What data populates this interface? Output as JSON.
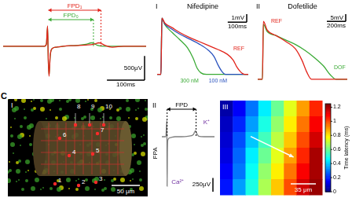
{
  "panel_letter": "C",
  "chart_data": [
    {
      "type": "line",
      "tick_labels": false,
      "grid": false,
      "xlim": [
        0,
        380
      ],
      "ylim": [
        -700,
        500
      ],
      "series": [
        {
          "color": "#e2231a",
          "x": [
            0,
            40,
            80,
            110,
            115,
            118,
            120,
            122,
            125,
            130,
            140,
            160,
            180,
            200,
            220,
            240,
            255,
            260,
            270,
            290,
            320,
            380
          ],
          "values": [
            0,
            0,
            0,
            0,
            50,
            420,
            -300,
            -620,
            -200,
            -50,
            -20,
            0,
            10,
            15,
            25,
            40,
            70,
            60,
            20,
            -20,
            0,
            0
          ]
        },
        {
          "color": "#3aaa35",
          "x": [
            0,
            40,
            80,
            110,
            115,
            118,
            120,
            122,
            125,
            130,
            140,
            160,
            180,
            200,
            220,
            235,
            240,
            250,
            270,
            300,
            340,
            380
          ],
          "values": [
            0,
            0,
            0,
            0,
            50,
            400,
            -300,
            -600,
            -200,
            -50,
            -20,
            0,
            10,
            20,
            40,
            70,
            60,
            20,
            0,
            0,
            0,
            0
          ]
        }
      ],
      "intervals": [
        {
          "text": "FPD₁",
          "color": "#e2231a",
          "start": 120,
          "end": 260
        },
        {
          "text": "FPD₀",
          "color": "#3aaa35",
          "start": 120,
          "end": 240
        }
      ],
      "scale_bars": [
        {
          "axis": "y",
          "value": 500,
          "label": "500μV"
        },
        {
          "axis": "x",
          "value": 100,
          "label": "100ms"
        }
      ]
    },
    {
      "type": "line",
      "numeral": "I",
      "title": "Nifedipine",
      "tick_labels": false,
      "grid": false,
      "xlim": [
        -20,
        460
      ],
      "ylim": [
        -1.5,
        7.5
      ],
      "series": [
        {
          "name": "REF",
          "color": "#e2231a",
          "x": [
            -20,
            0,
            5,
            20,
            60,
            100,
            150,
            200,
            250,
            300,
            350,
            380,
            400,
            420,
            440,
            460
          ],
          "values": [
            0,
            0,
            7,
            6.4,
            5.8,
            5.2,
            4.6,
            4.1,
            3.6,
            3.1,
            2.5,
            1.8,
            0.9,
            0.3,
            0,
            0
          ]
        },
        {
          "name": "100 nM",
          "color": "#2a52be",
          "x": [
            -20,
            0,
            5,
            20,
            60,
            100,
            150,
            200,
            250,
            280,
            300,
            320,
            340,
            460
          ],
          "values": [
            0,
            0,
            7,
            6.3,
            5.6,
            5,
            4.4,
            3.8,
            3,
            2.2,
            1.2,
            0.4,
            0,
            0
          ]
        },
        {
          "name": "300 nM",
          "color": "#3aaa35",
          "x": [
            -20,
            0,
            5,
            20,
            60,
            100,
            140,
            170,
            190,
            210,
            240,
            300,
            460
          ],
          "values": [
            0,
            0,
            7,
            6.2,
            5.2,
            4.3,
            3.3,
            2,
            0.8,
            0.2,
            0,
            0,
            0
          ]
        }
      ],
      "scale_bars": [
        {
          "axis": "y",
          "value": 1,
          "label": "1mV"
        },
        {
          "axis": "x",
          "value": 100,
          "label": "100ms"
        }
      ]
    },
    {
      "type": "line",
      "numeral": "II",
      "title": "Dofetilide",
      "tick_labels": false,
      "grid": false,
      "xlim": [
        -50,
        900
      ],
      "ylim": [
        -5,
        45
      ],
      "series": [
        {
          "name": "REF",
          "color": "#e2231a",
          "x": [
            -50,
            0,
            10,
            50,
            150,
            250,
            350,
            420,
            470,
            520,
            600,
            900
          ],
          "values": [
            0,
            0,
            40,
            34,
            30,
            26,
            21,
            13,
            5,
            0,
            0,
            0
          ]
        },
        {
          "name": "DOF",
          "color": "#3aaa35",
          "x": [
            -50,
            0,
            10,
            50,
            150,
            250,
            350,
            450,
            550,
            650,
            720,
            780,
            900
          ],
          "values": [
            0,
            0,
            38,
            33,
            30,
            27,
            24,
            20,
            15,
            9,
            3,
            0,
            0
          ]
        }
      ],
      "scale_bars": [
        {
          "axis": "y",
          "value": 5,
          "label": "5mV"
        },
        {
          "axis": "x",
          "value": 200,
          "label": "200ms"
        }
      ]
    },
    {
      "type": "line",
      "numeral": "II",
      "ylabel": "FPA",
      "tick_labels": false,
      "grid": false,
      "xlim": [
        0,
        400
      ],
      "ylim": [
        -1000,
        400
      ],
      "series": [
        {
          "color": "#7f7f7f",
          "x": [
            0,
            30,
            38,
            40,
            42,
            45,
            60,
            100,
            150,
            200,
            240,
            255,
            265,
            280,
            320,
            400
          ],
          "values": [
            0,
            0,
            300,
            -900,
            -300,
            -60,
            -20,
            0,
            0,
            10,
            40,
            110,
            60,
            10,
            0,
            0
          ]
        }
      ],
      "intervals": [
        {
          "text": "FPD",
          "color": "#000000",
          "start": 40,
          "end": 260
        }
      ],
      "annotations": [
        {
          "text": "K⁺",
          "color": "#7030a0"
        },
        {
          "text": "Ca²⁺",
          "color": "#7030a0"
        }
      ],
      "scale_bars": [
        {
          "axis": "y",
          "value": 250,
          "label": "250μV"
        }
      ]
    },
    {
      "type": "heatmap",
      "numeral": "III",
      "cells": [
        [
          0.05,
          0.15,
          0.3,
          0.45,
          0.6,
          0.75,
          0.9,
          1.05
        ],
        [
          0.08,
          0.2,
          0.35,
          0.5,
          0.65,
          0.8,
          0.95,
          1.1
        ],
        [
          0.1,
          0.25,
          0.4,
          0.55,
          0.7,
          0.85,
          1.0,
          1.15
        ],
        [
          0.12,
          0.28,
          0.45,
          0.6,
          0.75,
          0.9,
          1.05,
          1.2
        ],
        [
          0.15,
          0.3,
          0.48,
          0.65,
          0.8,
          0.95,
          1.1,
          1.2
        ],
        [
          0.18,
          0.35,
          0.5,
          0.68,
          0.85,
          1.0,
          1.15,
          1.22
        ]
      ],
      "colorbar": {
        "range": [
          0,
          1.25
        ],
        "ticks": [
          0,
          0.2,
          0.4,
          0.6,
          0.8,
          1,
          1.2
        ],
        "label": "Time latency (ms)"
      },
      "scale_bar": "35 μm"
    }
  ],
  "image": {
    "numeral": "I",
    "electrodes": [
      "1",
      "2",
      "3",
      "4",
      "5",
      "6",
      "7",
      "8",
      "9",
      "10"
    ],
    "scale_bar": "50 μm"
  }
}
